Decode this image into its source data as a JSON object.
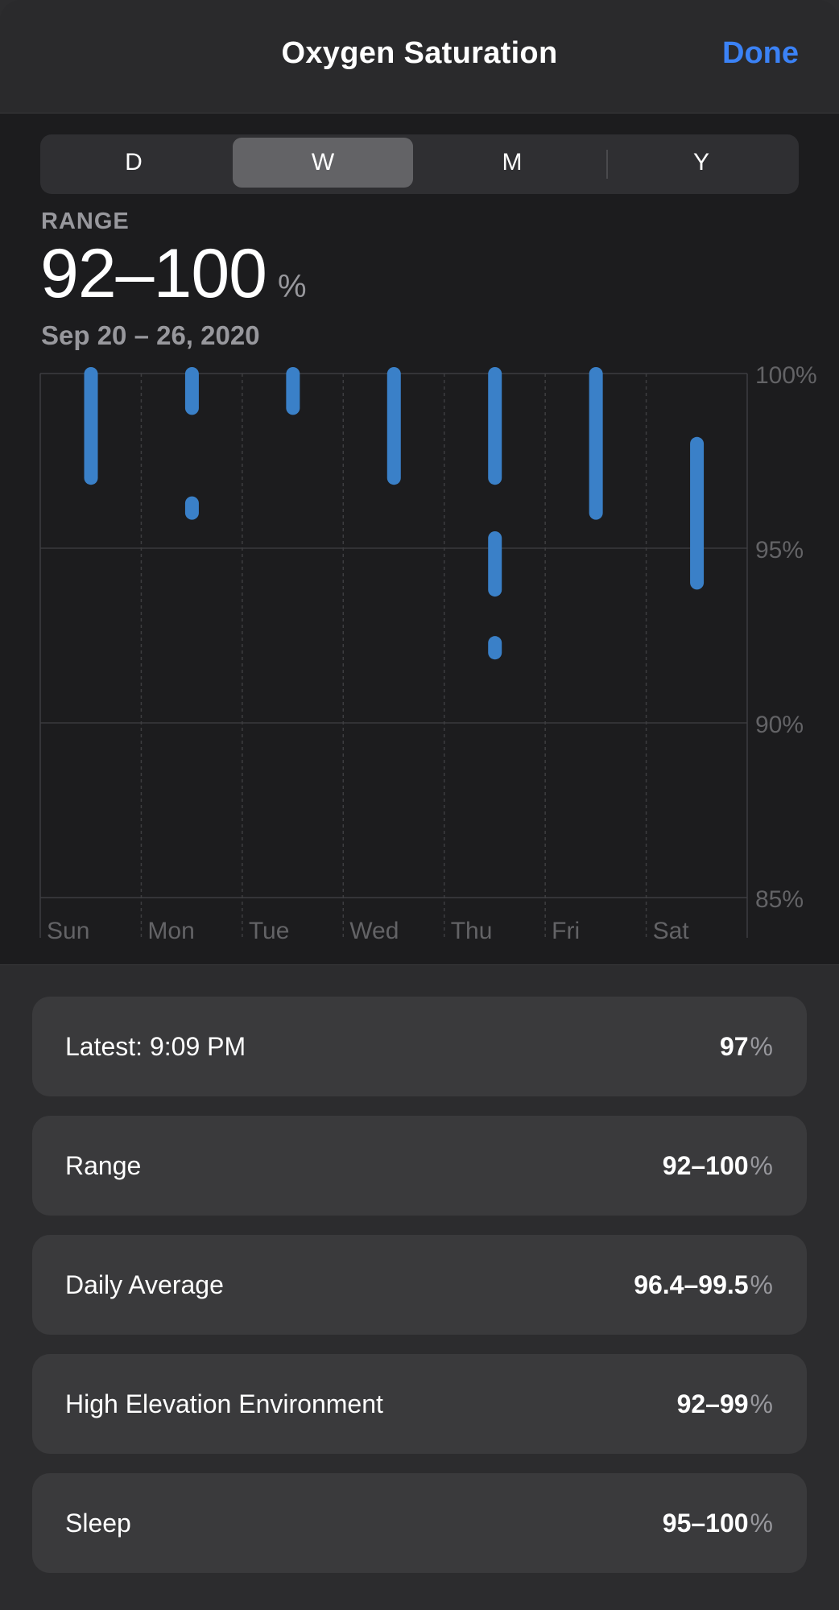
{
  "header": {
    "title": "Oxygen Saturation",
    "done_label": "Done"
  },
  "segmented_control": {
    "options": [
      "D",
      "W",
      "M",
      "Y"
    ],
    "selected": "W"
  },
  "summary": {
    "label": "RANGE",
    "value": "92–100",
    "unit": "%",
    "date_range": "Sep 20 – 26, 2020"
  },
  "chart_data": {
    "type": "range-bar",
    "categories": [
      "Sun",
      "Mon",
      "Tue",
      "Wed",
      "Thu",
      "Fri",
      "Sat"
    ],
    "y_tick_labels": [
      "100%",
      "95%",
      "90%",
      "85%"
    ],
    "y_ticks": [
      100,
      95,
      90,
      85
    ],
    "ylim": [
      85,
      100
    ],
    "grid": true,
    "series": [
      {
        "color": "#3a80c8",
        "ranges": [
          [
            [
              97,
              100
            ]
          ],
          [
            [
              99,
              100
            ],
            [
              96,
              96.3
            ]
          ],
          [
            [
              99,
              100
            ]
          ],
          [
            [
              97,
              100
            ]
          ],
          [
            [
              97,
              100
            ],
            [
              93.8,
              95.3
            ],
            [
              92,
              92.3
            ]
          ],
          [
            [
              96,
              100
            ]
          ],
          [
            [
              94,
              98
            ]
          ]
        ]
      }
    ]
  },
  "stats": [
    {
      "label": "Latest: 9:09 PM",
      "value": "97",
      "unit": "%"
    },
    {
      "label": "Range",
      "value": "92–100",
      "unit": "%"
    },
    {
      "label": "Daily Average",
      "value": "96.4–99.5",
      "unit": "%"
    },
    {
      "label": "High Elevation Environment",
      "value": "92–99",
      "unit": "%"
    },
    {
      "label": "Sleep",
      "value": "95–100",
      "unit": "%"
    }
  ]
}
